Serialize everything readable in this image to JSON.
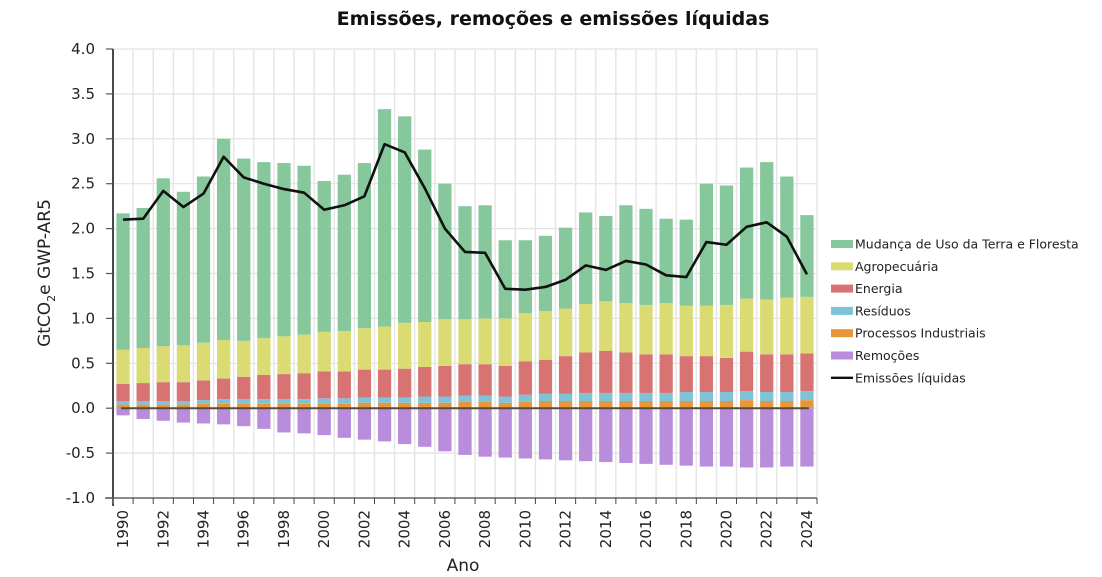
{
  "chart_data": {
    "type": "bar",
    "stacked": true,
    "title": "Emissões, remoções e emissões líquidas",
    "xlabel": "Ano",
    "ylabel_parts": [
      "GtCO",
      "2",
      "e GWP-AR5"
    ],
    "ylim": [
      -1.0,
      4.0
    ],
    "yticks": [
      "4.0",
      "3.5",
      "3.0",
      "2.5",
      "2.0",
      "1.5",
      "1.0",
      "0.5",
      "0.0",
      "-0.5",
      "-1.0"
    ],
    "ytick_values": [
      4.0,
      3.5,
      3.0,
      2.5,
      2.0,
      1.5,
      1.0,
      0.5,
      0.0,
      -0.5,
      -1.0
    ],
    "grid": true,
    "legend_position": "right",
    "categories": [
      1990,
      1991,
      1992,
      1993,
      1994,
      1995,
      1996,
      1997,
      1998,
      1999,
      2000,
      2001,
      2002,
      2003,
      2004,
      2005,
      2006,
      2007,
      2008,
      2009,
      2010,
      2011,
      2012,
      2013,
      2014,
      2015,
      2016,
      2017,
      2018,
      2019,
      2020,
      2021,
      2022,
      2023,
      2024
    ],
    "xtick_labels": [
      "1990",
      "1992",
      "1994",
      "1996",
      "1998",
      "2000",
      "2002",
      "2004",
      "2006",
      "2008",
      "2010",
      "2012",
      "2014",
      "2016",
      "2018",
      "2020",
      "2022",
      "2024"
    ],
    "series": [
      {
        "name": "Processos Industriais",
        "color": "#e8963c",
        "values": [
          0.04,
          0.04,
          0.04,
          0.04,
          0.05,
          0.05,
          0.05,
          0.05,
          0.05,
          0.05,
          0.05,
          0.05,
          0.06,
          0.06,
          0.06,
          0.06,
          0.06,
          0.07,
          0.07,
          0.06,
          0.07,
          0.08,
          0.08,
          0.08,
          0.08,
          0.08,
          0.08,
          0.08,
          0.08,
          0.08,
          0.08,
          0.09,
          0.08,
          0.08,
          0.09
        ]
      },
      {
        "name": "Resíduos",
        "color": "#7fc3d8",
        "values": [
          0.04,
          0.04,
          0.04,
          0.04,
          0.04,
          0.05,
          0.05,
          0.05,
          0.05,
          0.05,
          0.06,
          0.06,
          0.06,
          0.06,
          0.06,
          0.07,
          0.07,
          0.07,
          0.07,
          0.07,
          0.08,
          0.08,
          0.08,
          0.09,
          0.09,
          0.09,
          0.09,
          0.09,
          0.1,
          0.1,
          0.1,
          0.1,
          0.1,
          0.1,
          0.1
        ]
      },
      {
        "name": "Energia",
        "color": "#d87373",
        "values": [
          0.19,
          0.2,
          0.21,
          0.21,
          0.22,
          0.23,
          0.25,
          0.27,
          0.28,
          0.29,
          0.3,
          0.3,
          0.31,
          0.31,
          0.32,
          0.33,
          0.34,
          0.35,
          0.35,
          0.34,
          0.37,
          0.38,
          0.42,
          0.45,
          0.47,
          0.45,
          0.43,
          0.43,
          0.4,
          0.4,
          0.38,
          0.44,
          0.42,
          0.42,
          0.42
        ]
      },
      {
        "name": "Agropecuária",
        "color": "#dbdb73",
        "values": [
          0.38,
          0.39,
          0.4,
          0.41,
          0.42,
          0.43,
          0.4,
          0.41,
          0.42,
          0.43,
          0.44,
          0.45,
          0.46,
          0.48,
          0.51,
          0.5,
          0.52,
          0.5,
          0.51,
          0.53,
          0.54,
          0.54,
          0.53,
          0.54,
          0.55,
          0.55,
          0.55,
          0.57,
          0.56,
          0.56,
          0.59,
          0.59,
          0.61,
          0.63,
          0.63
        ]
      },
      {
        "name": "Mudança de Uso da Terra e Floresta",
        "color": "#86c79c",
        "values": [
          1.52,
          1.56,
          1.87,
          1.71,
          1.85,
          2.24,
          2.03,
          1.96,
          1.93,
          1.88,
          1.68,
          1.74,
          1.84,
          2.42,
          2.3,
          1.92,
          1.51,
          1.26,
          1.26,
          0.87,
          0.81,
          0.84,
          0.9,
          1.02,
          0.95,
          1.09,
          1.07,
          0.94,
          0.96,
          1.36,
          1.33,
          1.46,
          1.53,
          1.35,
          0.91
        ]
      },
      {
        "name": "Remoções",
        "color": "#b98ddb",
        "values": [
          -0.08,
          -0.12,
          -0.14,
          -0.16,
          -0.17,
          -0.18,
          -0.2,
          -0.23,
          -0.27,
          -0.28,
          -0.3,
          -0.33,
          -0.35,
          -0.37,
          -0.4,
          -0.43,
          -0.48,
          -0.52,
          -0.54,
          -0.55,
          -0.56,
          -0.57,
          -0.58,
          -0.59,
          -0.6,
          -0.61,
          -0.62,
          -0.63,
          -0.64,
          -0.65,
          -0.65,
          -0.66,
          -0.66,
          -0.65,
          -0.65
        ]
      }
    ],
    "line_series": {
      "name": "Emissões líquidas",
      "color": "#111111",
      "values": [
        2.1,
        2.11,
        2.42,
        2.24,
        2.39,
        2.8,
        2.57,
        2.5,
        2.44,
        2.4,
        2.21,
        2.26,
        2.36,
        2.94,
        2.85,
        2.45,
        2.0,
        1.74,
        1.73,
        1.33,
        1.32,
        1.35,
        1.43,
        1.59,
        1.54,
        1.64,
        1.6,
        1.48,
        1.46,
        1.85,
        1.82,
        2.02,
        2.07,
        1.91,
        1.49
      ]
    },
    "legend": [
      "Mudança de Uso da Terra e Floresta",
      "Agropecuária",
      "Energia",
      "Resíduos",
      "Processos Industriais",
      "Remoções",
      "Emissões líquidas"
    ]
  }
}
